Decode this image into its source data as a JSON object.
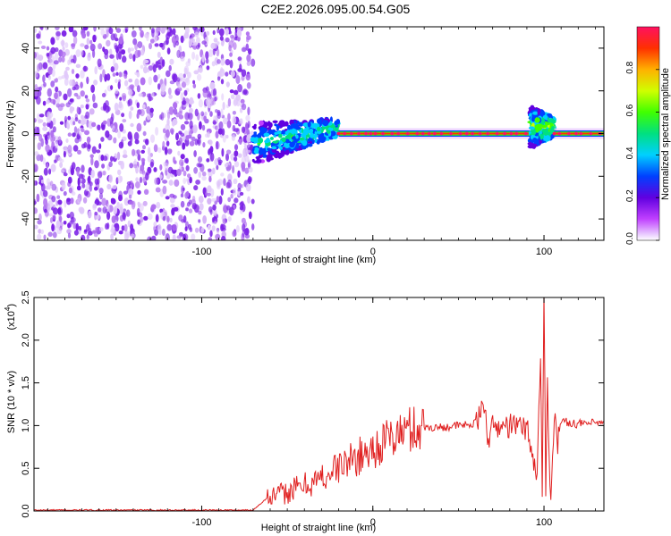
{
  "title": "C2E2.2026.095.00.54.G05",
  "chart_data": [
    {
      "type": "heatmap",
      "xlabel": "Height of straight line (km)",
      "ylabel": "Frequency (Hz)",
      "xlim": [
        -198,
        135
      ],
      "ylim": [
        -50,
        50
      ],
      "x_ticks": [
        -100,
        0,
        100
      ],
      "y_ticks": [
        -40,
        -20,
        0,
        20,
        40
      ],
      "colorbar": {
        "label": "Normalized spectral amplitude",
        "range": [
          0.0,
          1.0
        ],
        "ticks": [
          "0.0",
          "0.2",
          "0.4",
          "0.6",
          "0.8"
        ]
      },
      "regions": [
        {
          "x_range": [
            -198,
            -70
          ],
          "pattern": "broadband noise",
          "level": 0.15
        },
        {
          "x_range": [
            -70,
            -20
          ],
          "pattern": "band near 0 Hz, spread ±10 Hz",
          "center_hz": [
            -5,
            3
          ],
          "peak_level": 0.45
        },
        {
          "x_range": [
            -20,
            100
          ],
          "pattern": "narrow line at 0 Hz",
          "center_hz": 0,
          "peak_level": 1.0
        },
        {
          "x_range": [
            92,
            106
          ],
          "pattern": "spread ±10 Hz",
          "center_hz": 3,
          "peak_level": 0.6
        },
        {
          "x_range": [
            106,
            135
          ],
          "pattern": "narrow line at 0 Hz",
          "center_hz": 0,
          "peak_level": 1.0
        }
      ]
    },
    {
      "type": "line",
      "xlabel": "Height of straight line (km)",
      "ylabel": "SNR (10 * v/v)",
      "y_scale_label": "(x10",
      "y_scale_exponent": "4",
      "xlim": [
        -198,
        135
      ],
      "ylim": [
        0,
        2.5
      ],
      "x_ticks": [
        -100,
        0,
        100
      ],
      "y_ticks": [
        "0.0",
        "0.5",
        "1.0",
        "1.5",
        "2.0",
        "2.5"
      ],
      "line_color": "#e02020",
      "series": [
        {
          "x": [
            -198,
            -70,
            -62,
            -50,
            -40,
            -30,
            -20,
            -10,
            0,
            10,
            20,
            30,
            40,
            50,
            60,
            66,
            67,
            68,
            70,
            80,
            90,
            96,
            98,
            99,
            100,
            101,
            102,
            104,
            106,
            108,
            110,
            120,
            135
          ],
          "y": [
            0.01,
            0.01,
            0.15,
            0.22,
            0.3,
            0.38,
            0.52,
            0.62,
            0.72,
            0.85,
            0.95,
            0.98,
            0.98,
            1.0,
            1.02,
            1.25,
            0.9,
            0.85,
            0.98,
            1.0,
            0.98,
            0.4,
            1.9,
            0.1,
            2.5,
            0.3,
            1.5,
            0.05,
            1.2,
            0.8,
            1.05,
            1.02,
            1.03
          ]
        }
      ]
    }
  ]
}
